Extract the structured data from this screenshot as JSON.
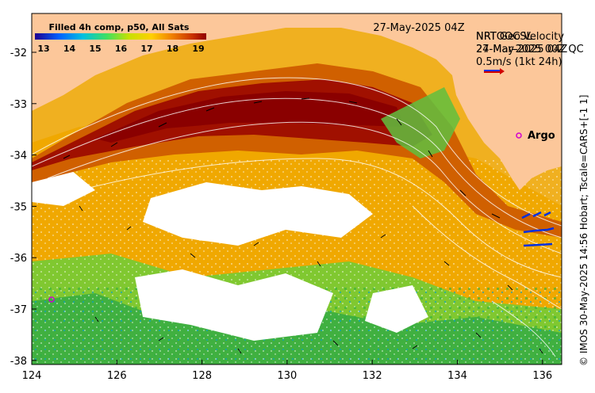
{
  "map": {
    "colorbar": {
      "title": "Filled 4h comp, p50, All Sats",
      "ticks": [
        "13",
        "14",
        "15",
        "16",
        "17",
        "18",
        "19"
      ]
    },
    "date_label": "27-May-2025 04Z",
    "legend": {
      "line1": "NRTOOCSL",
      "line1_overlay": "NRT Geo Velocity",
      "line2": "27-May-2025 04Z",
      "line2_overlay": "24-Mar-2025 00Z QC",
      "scale_text": "0.5m/s (1kt 24h)",
      "arrow_color": "#d00000"
    },
    "argo_label": "Argo",
    "credit": "© IMOS 30-May-2025 14:56 Hobart; Tscale=CARS+[-1 1]",
    "x_ticks": [
      "124",
      "126",
      "128",
      "130",
      "132",
      "134",
      "136"
    ],
    "y_ticks": [
      "-32",
      "-33",
      "-34",
      "-35",
      "-36",
      "-37",
      "-38"
    ],
    "colors": {
      "land": "#fcc79a",
      "warm": "#a01000",
      "ocean_mid": "#f0a000",
      "cool": "#60c040",
      "no_data": "#ffffff"
    }
  }
}
